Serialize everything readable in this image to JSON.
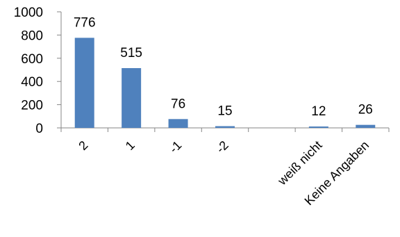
{
  "chart_data": {
    "type": "bar",
    "categories": [
      "2",
      "1",
      "-1",
      "-2",
      "",
      "weiß nicht",
      "Keine Angaben"
    ],
    "values": [
      776,
      515,
      76,
      15,
      0,
      12,
      26
    ],
    "data_labels": [
      "776",
      "515",
      "76",
      "15",
      "",
      "12",
      "26"
    ],
    "y_ticks": [
      "0",
      "200",
      "400",
      "600",
      "800",
      "1000"
    ],
    "ylim": [
      0,
      1000
    ],
    "grid": false,
    "legend": "none",
    "bar_color": "#4F81BD",
    "axis_color": "#868686"
  }
}
